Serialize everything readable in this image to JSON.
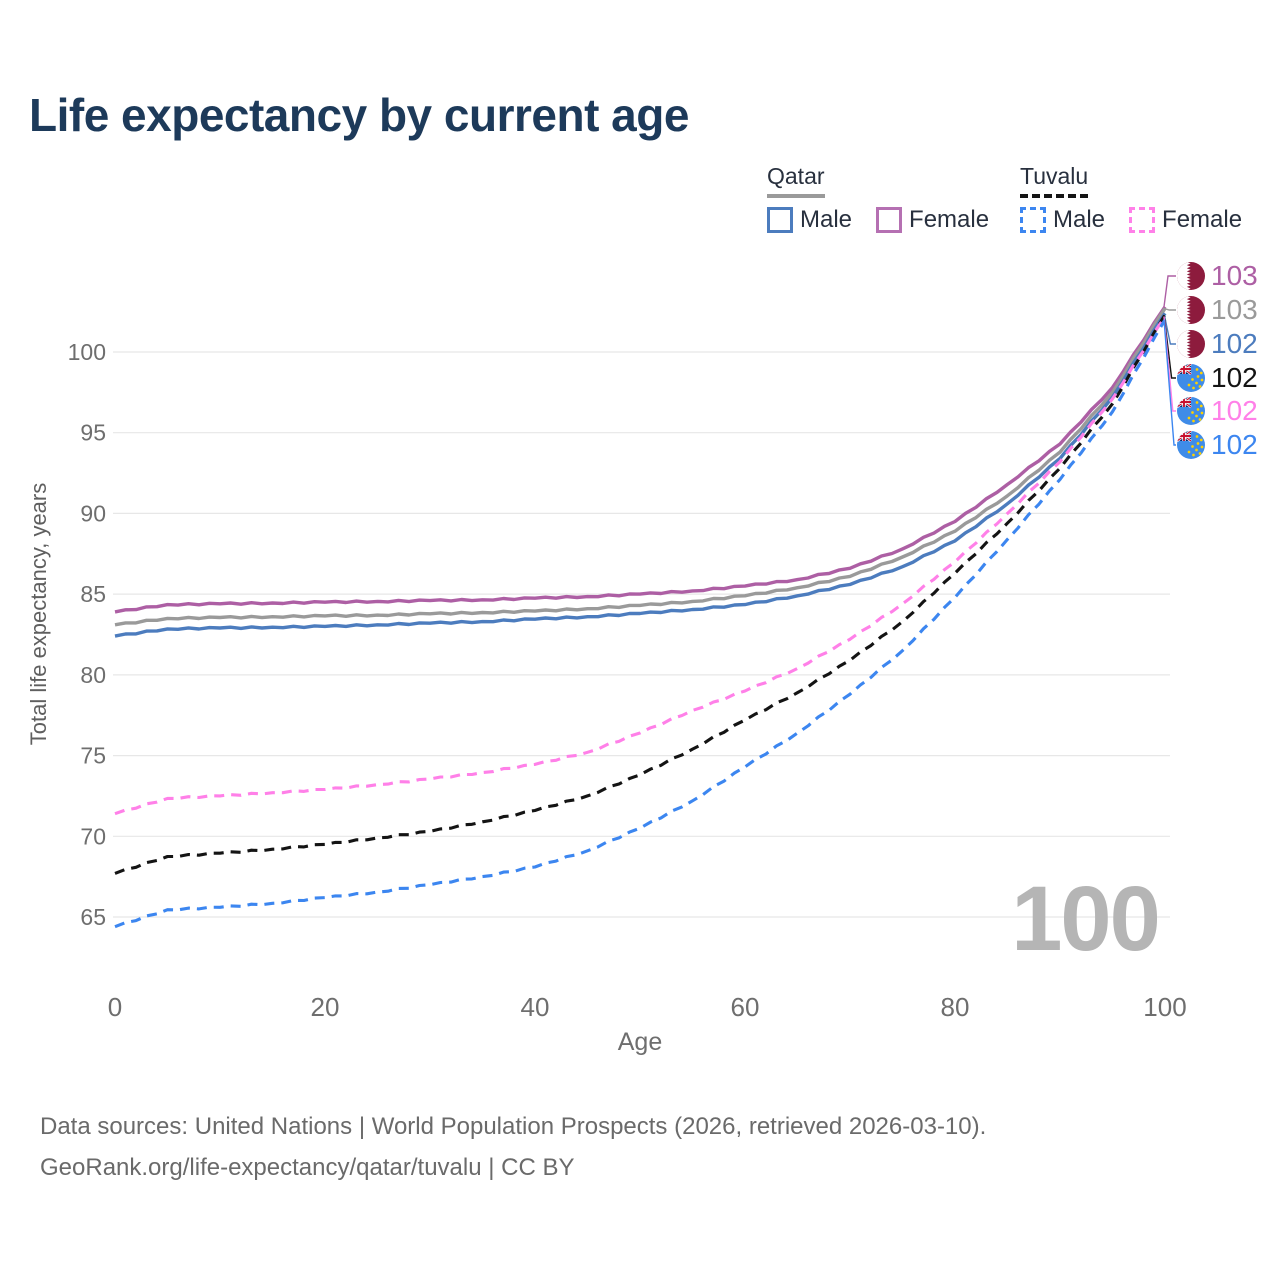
{
  "title": "Life expectancy by current age",
  "watermark": "100",
  "legend": {
    "qatar_label": "Qatar",
    "tuvalu_label": "Tuvalu",
    "qatar_male": "Male",
    "qatar_female": "Female",
    "tuvalu_male": "Male",
    "tuvalu_female": "Female"
  },
  "colors": {
    "title": "#1d3a5a",
    "qatar_male": "#4c7cbe",
    "qatar_female": "#ad5fa4",
    "qatar_all": "#9a9a9a",
    "tuvalu_male": "#3c86f0",
    "tuvalu_female": "#ff80e8",
    "tuvalu_all": "#141414",
    "gridline": "#e7e7e7",
    "tick_text": "#6e6e6e",
    "watermark": "#b5b5b5"
  },
  "end_labels": [
    {
      "flag": "qatar",
      "value": "103",
      "color": "#ad5fa4"
    },
    {
      "flag": "qatar",
      "value": "103",
      "color": "#9a9a9a"
    },
    {
      "flag": "qatar",
      "value": "102",
      "color": "#4c7cbe"
    },
    {
      "flag": "tuvalu",
      "value": "102",
      "color": "#141414"
    },
    {
      "flag": "tuvalu",
      "value": "102",
      "color": "#ff80e8"
    },
    {
      "flag": "tuvalu",
      "value": "102",
      "color": "#3c86f0"
    }
  ],
  "footer": {
    "line1": "Data sources: United Nations | World Population Prospects (2026, retrieved 2026-03-10).",
    "line2": "GeoRank.org/life-expectancy/qatar/tuvalu | CC BY"
  },
  "chart_data": {
    "type": "line",
    "title": "Life expectancy by current age",
    "xlabel": "Age",
    "ylabel": "Total life expectancy, years",
    "x": [
      0,
      5,
      10,
      15,
      20,
      25,
      30,
      35,
      40,
      45,
      50,
      55,
      60,
      65,
      70,
      75,
      80,
      85,
      90,
      95,
      100
    ],
    "xticks": [
      0,
      20,
      40,
      60,
      80,
      100
    ],
    "yticks": [
      65,
      70,
      75,
      80,
      85,
      90,
      95,
      100
    ],
    "xlim": [
      0,
      100
    ],
    "ylim": [
      63.5,
      104
    ],
    "grid": "horizontal",
    "legend_position": "top-right",
    "annotation_age_counter": "100",
    "series": [
      {
        "name": "Qatar Female",
        "style": "solid",
        "color": "#ad5fa4",
        "end_label": "103",
        "values": [
          83.9,
          84.35,
          84.4,
          84.45,
          84.5,
          84.55,
          84.6,
          84.65,
          84.75,
          84.85,
          85.0,
          85.2,
          85.5,
          85.9,
          86.6,
          87.8,
          89.5,
          91.8,
          94.3,
          97.8,
          102.8
        ]
      },
      {
        "name": "Qatar (both sexes)",
        "style": "solid",
        "color": "#9a9a9a",
        "end_label": "103",
        "values": [
          83.1,
          83.5,
          83.55,
          83.6,
          83.65,
          83.7,
          83.78,
          83.86,
          83.95,
          84.1,
          84.3,
          84.55,
          84.9,
          85.4,
          86.1,
          87.3,
          88.9,
          91.1,
          93.8,
          97.5,
          102.7
        ]
      },
      {
        "name": "Qatar Male",
        "style": "solid",
        "color": "#4c7cbe",
        "end_label": "102",
        "values": [
          82.4,
          82.85,
          82.9,
          82.95,
          83.0,
          83.1,
          83.2,
          83.3,
          83.45,
          83.6,
          83.8,
          84.05,
          84.35,
          84.9,
          85.6,
          86.7,
          88.3,
          90.6,
          93.4,
          97.2,
          102.4
        ]
      },
      {
        "name": "Tuvalu (both sexes)",
        "style": "dashed",
        "color": "#141414",
        "end_label": "102",
        "values": [
          67.7,
          68.75,
          68.95,
          69.2,
          69.5,
          69.9,
          70.3,
          70.9,
          71.6,
          72.5,
          73.8,
          75.4,
          77.2,
          78.9,
          80.9,
          83.3,
          86.3,
          89.4,
          92.8,
          96.8,
          102.3
        ]
      },
      {
        "name": "Tuvalu Female",
        "style": "dashed",
        "color": "#ff80e8",
        "end_label": "102",
        "values": [
          71.4,
          72.35,
          72.5,
          72.7,
          72.9,
          73.2,
          73.55,
          73.95,
          74.45,
          75.2,
          76.4,
          77.8,
          79.0,
          80.4,
          82.2,
          84.4,
          87.0,
          90.0,
          93.2,
          97.1,
          102.2
        ]
      },
      {
        "name": "Tuvalu Male",
        "style": "dashed",
        "color": "#3c86f0",
        "end_label": "102",
        "values": [
          64.4,
          65.45,
          65.6,
          65.85,
          66.2,
          66.55,
          67.0,
          67.5,
          68.1,
          69.1,
          70.5,
          72.2,
          74.3,
          76.4,
          78.8,
          81.5,
          84.8,
          88.4,
          92.1,
          96.3,
          102.0
        ]
      }
    ]
  }
}
